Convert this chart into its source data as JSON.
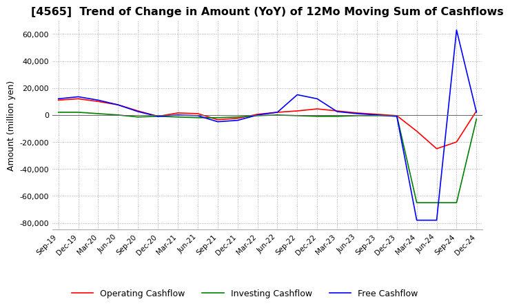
{
  "title": "[4565]  Trend of Change in Amount (YoY) of 12Mo Moving Sum of Cashflows",
  "ylabel": "Amount (million yen)",
  "ylim": [
    -85000,
    70000
  ],
  "yticks": [
    -80000,
    -60000,
    -40000,
    -20000,
    0,
    20000,
    40000,
    60000
  ],
  "legend_labels": [
    "Operating Cashflow",
    "Investing Cashflow",
    "Free Cashflow"
  ],
  "legend_colors": [
    "#ff0000",
    "#008000",
    "#0000ff"
  ],
  "x_labels": [
    "Sep-19",
    "Dec-19",
    "Mar-20",
    "Jun-20",
    "Sep-20",
    "Dec-20",
    "Mar-21",
    "Jun-21",
    "Sep-21",
    "Dec-21",
    "Mar-22",
    "Jun-22",
    "Sep-22",
    "Dec-22",
    "Mar-23",
    "Jun-23",
    "Sep-23",
    "Dec-23",
    "Mar-24",
    "Jun-24",
    "Sep-24",
    "Dec-24"
  ],
  "operating": [
    11000,
    12000,
    10000,
    7500,
    3000,
    -1000,
    1500,
    1000,
    -3500,
    -2500,
    500,
    2000,
    3000,
    4500,
    3000,
    1500,
    500,
    -500,
    -12000,
    -25000,
    -20000,
    3000
  ],
  "investing": [
    2000,
    2000,
    1000,
    0,
    -1500,
    -1000,
    -1500,
    -2000,
    -2000,
    -1500,
    -500,
    0,
    -500,
    -1000,
    -1000,
    -500,
    -500,
    -500,
    -65000,
    -65000,
    -65000,
    -3000
  ],
  "free": [
    12000,
    13500,
    11000,
    7500,
    2500,
    -1000,
    0,
    -500,
    -5000,
    -4000,
    0,
    2000,
    15000,
    12000,
    2500,
    1000,
    0,
    -1000,
    -78000,
    -78000,
    63000,
    2000
  ],
  "background_color": "#ffffff",
  "grid_color": "#aaaaaa",
  "title_fontsize": 11.5
}
